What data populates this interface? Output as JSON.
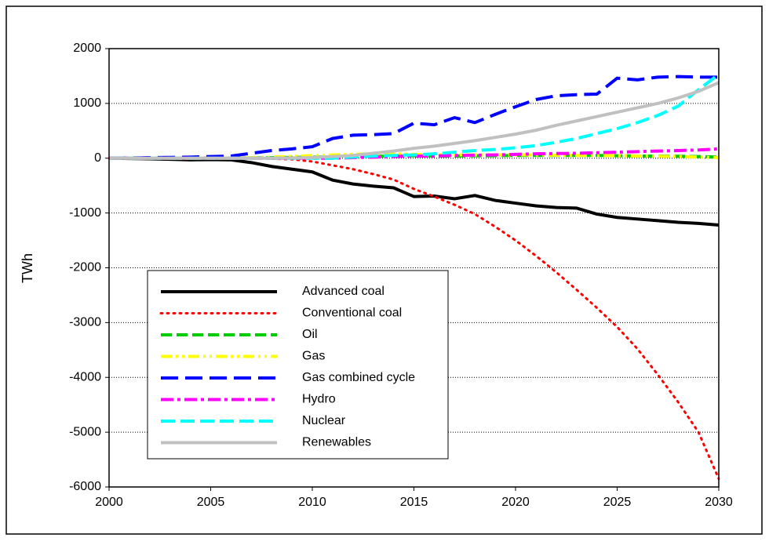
{
  "chart_data": {
    "type": "line",
    "y_label": "TWh",
    "x": [
      2000,
      2001,
      2002,
      2003,
      2004,
      2005,
      2006,
      2007,
      2008,
      2009,
      2010,
      2011,
      2012,
      2013,
      2014,
      2015,
      2016,
      2017,
      2018,
      2019,
      2020,
      2021,
      2022,
      2023,
      2024,
      2025,
      2026,
      2027,
      2028,
      2029,
      2030
    ],
    "xlim": [
      2000,
      2030
    ],
    "xticks": [
      2000,
      2005,
      2010,
      2015,
      2020,
      2025,
      2030
    ],
    "ylim": [
      -6000,
      2000
    ],
    "yticks": [
      -6000,
      -5000,
      -4000,
      -3000,
      -2000,
      -1000,
      0,
      1000,
      2000
    ],
    "grid": true,
    "legend": "lower left",
    "series": [
      {
        "name": "Advanced coal",
        "color": "#000000",
        "dash": "none",
        "values": [
          0,
          -5,
          -10,
          -20,
          -30,
          -25,
          -30,
          -80,
          -150,
          -200,
          -250,
          -400,
          -470,
          -510,
          -540,
          -700,
          -690,
          -740,
          -680,
          -770,
          -820,
          -870,
          -900,
          -910,
          -1020,
          -1080,
          -1110,
          -1140,
          -1170,
          -1190,
          -1220
        ]
      },
      {
        "name": "Conventional coal",
        "color": "#ff0000",
        "dash": "2,6",
        "values": [
          0,
          0,
          0,
          0,
          0,
          0,
          0,
          0,
          -10,
          -20,
          -60,
          -130,
          -200,
          -290,
          -390,
          -560,
          -700,
          -850,
          -1020,
          -1250,
          -1500,
          -1780,
          -2080,
          -2400,
          -2730,
          -3080,
          -3480,
          -3950,
          -4450,
          -5000,
          -5850
        ]
      },
      {
        "name": "Oil",
        "color": "#00cc00",
        "dash": "14,6",
        "values": [
          0,
          0,
          0,
          0,
          0,
          0,
          0,
          5,
          10,
          15,
          20,
          25,
          30,
          35,
          40,
          45,
          40,
          40,
          45,
          45,
          50,
          50,
          50,
          50,
          50,
          45,
          40,
          40,
          35,
          30,
          20
        ]
      },
      {
        "name": "Gas",
        "color": "#ffff00",
        "dash": "14,5,3,5,3,5",
        "values": [
          0,
          0,
          0,
          0,
          0,
          0,
          0,
          10,
          20,
          30,
          50,
          60,
          70,
          80,
          80,
          70,
          60,
          60,
          60,
          60,
          60,
          60,
          55,
          50,
          50,
          45,
          40,
          35,
          30,
          20,
          10
        ]
      },
      {
        "name": "Gas combined cycle",
        "color": "#0000ff",
        "dash": "22,9",
        "values": [
          0,
          5,
          10,
          15,
          20,
          30,
          40,
          90,
          140,
          170,
          210,
          360,
          420,
          430,
          450,
          640,
          610,
          740,
          650,
          800,
          940,
          1070,
          1140,
          1160,
          1170,
          1460,
          1430,
          1480,
          1490,
          1480,
          1480
        ]
      },
      {
        "name": "Hydro",
        "color": "#ff00ff",
        "dash": "16,5,4,5",
        "values": [
          0,
          0,
          0,
          0,
          0,
          0,
          0,
          0,
          0,
          0,
          0,
          0,
          10,
          20,
          30,
          40,
          40,
          50,
          55,
          60,
          70,
          80,
          85,
          90,
          100,
          110,
          120,
          130,
          140,
          150,
          170
        ]
      },
      {
        "name": "Nuclear",
        "color": "#00ffff",
        "dash": "18,7",
        "values": [
          0,
          0,
          0,
          0,
          0,
          0,
          0,
          0,
          0,
          0,
          0,
          0,
          20,
          40,
          50,
          60,
          80,
          110,
          140,
          160,
          190,
          230,
          290,
          360,
          450,
          540,
          650,
          780,
          950,
          1250,
          1530
        ]
      },
      {
        "name": "Renewables",
        "color": "#c0c0c0",
        "dash": "none",
        "values": [
          0,
          0,
          0,
          0,
          0,
          0,
          0,
          0,
          0,
          5,
          10,
          30,
          50,
          90,
          130,
          180,
          220,
          270,
          320,
          380,
          440,
          510,
          600,
          680,
          760,
          840,
          920,
          1000,
          1100,
          1220,
          1380
        ]
      }
    ]
  }
}
